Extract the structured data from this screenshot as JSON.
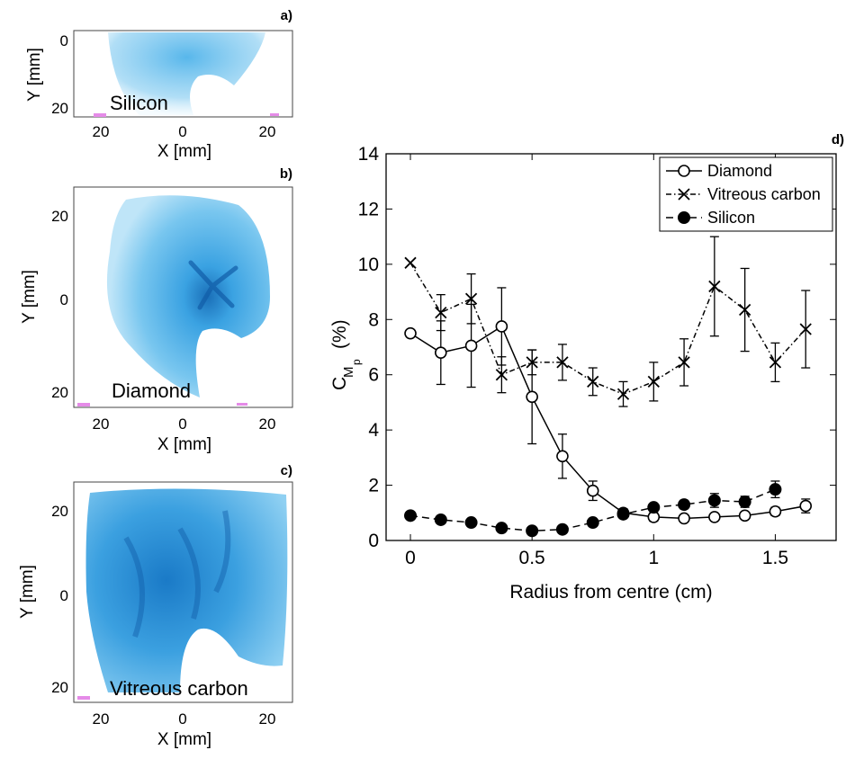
{
  "chart_data": [
    {
      "type": "heatmap",
      "panel_letter": "a)",
      "material": "Silicon",
      "xlabel": "X [mm]",
      "ylabel": "Y [mm]",
      "xticks": [
        "20",
        "0",
        "20"
      ],
      "yticks": [
        "0",
        "20"
      ],
      "colormap": "#29a3e0"
    },
    {
      "type": "heatmap",
      "panel_letter": "b)",
      "material": "Diamond",
      "xlabel": "X [mm]",
      "ylabel": "Y [mm]",
      "xticks": [
        "20",
        "0",
        "20"
      ],
      "yticks": [
        "20",
        "0",
        "20"
      ],
      "colormap": "#1e8fd6"
    },
    {
      "type": "heatmap",
      "panel_letter": "c)",
      "material": "Vitreous carbon",
      "xlabel": "X [mm]",
      "ylabel": "Y [mm]",
      "xticks": [
        "20",
        "0",
        "20"
      ],
      "yticks": [
        "20",
        "0",
        "20"
      ],
      "colormap": "#1780cc"
    },
    {
      "type": "line",
      "panel_letter": "d)",
      "xlabel": "Radius from centre (cm)",
      "ylabel_main": "C",
      "ylabel_sub1": "M",
      "ylabel_sub2": "p",
      "ylabel_unit": "(%)",
      "xlim": [
        -0.1,
        1.75
      ],
      "ylim": [
        0,
        14
      ],
      "xticks": [
        0,
        0.5,
        1,
        1.5
      ],
      "xtick_labels": [
        "0",
        "0.5",
        "1",
        "1.5"
      ],
      "yticks": [
        0,
        2,
        4,
        6,
        8,
        10,
        12,
        14
      ],
      "ytick_labels": [
        "0",
        "2",
        "4",
        "6",
        "8",
        "10",
        "12",
        "14"
      ],
      "legend_position": "top-right",
      "series": [
        {
          "name": "Diamond",
          "marker": "open-circle",
          "line": "solid",
          "x": [
            0,
            0.125,
            0.25,
            0.375,
            0.5,
            0.625,
            0.75,
            0.875,
            1.0,
            1.125,
            1.25,
            1.375,
            1.5,
            1.625
          ],
          "y": [
            7.5,
            6.8,
            7.05,
            7.75,
            5.2,
            3.05,
            1.8,
            1.0,
            0.85,
            0.8,
            0.85,
            0.9,
            1.05,
            1.25
          ],
          "err": [
            0,
            1.15,
            1.5,
            1.4,
            1.7,
            0.8,
            0.35,
            0.15,
            0.15,
            0.1,
            0.1,
            0.12,
            0.15,
            0.25
          ]
        },
        {
          "name": "Vitreous carbon",
          "marker": "x",
          "line": "dashdot",
          "x": [
            0,
            0.125,
            0.25,
            0.375,
            0.5,
            0.625,
            0.75,
            0.875,
            1.0,
            1.125,
            1.25,
            1.375,
            1.5,
            1.625
          ],
          "y": [
            10.05,
            8.25,
            8.75,
            6.0,
            6.45,
            6.45,
            5.75,
            5.3,
            5.75,
            6.45,
            9.2,
            8.35,
            6.45,
            7.65
          ],
          "err": [
            0,
            0.65,
            0.9,
            0.65,
            0.45,
            0.65,
            0.5,
            0.45,
            0.7,
            0.85,
            1.8,
            1.5,
            0.7,
            1.4
          ]
        },
        {
          "name": "Silicon",
          "marker": "filled-circle",
          "line": "dashed",
          "x": [
            0,
            0.125,
            0.25,
            0.375,
            0.5,
            0.625,
            0.75,
            0.875,
            1.0,
            1.125,
            1.25,
            1.375,
            1.5
          ],
          "y": [
            0.9,
            0.75,
            0.65,
            0.45,
            0.35,
            0.4,
            0.65,
            0.95,
            1.2,
            1.3,
            1.45,
            1.4,
            1.85
          ],
          "err": [
            0,
            0,
            0,
            0,
            0,
            0,
            0,
            0.05,
            0.1,
            0.15,
            0.25,
            0.2,
            0.3
          ]
        }
      ]
    }
  ]
}
